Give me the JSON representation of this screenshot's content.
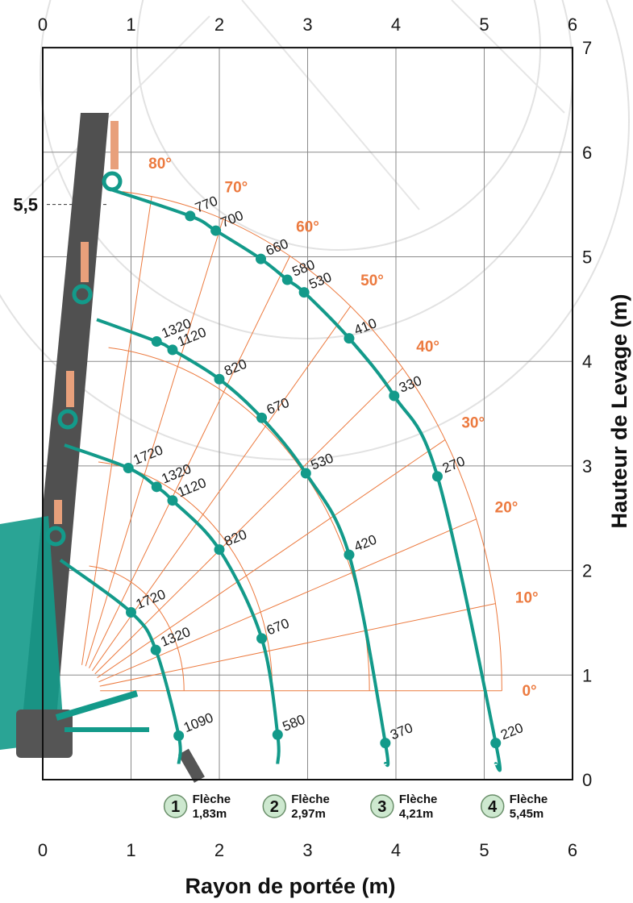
{
  "chart_data": {
    "type": "line",
    "xlabel": "Rayon de portée (m)",
    "ylabel": "Hauteur de Levage (m)",
    "xlim": [
      0,
      6
    ],
    "ylim": [
      0,
      7
    ],
    "x_ticks": [
      "0",
      "1",
      "2",
      "3",
      "4",
      "5",
      "6"
    ],
    "y_ticks": [
      "0",
      "1",
      "2",
      "3",
      "4",
      "5",
      "6",
      "7"
    ],
    "grid": true,
    "reference_line": {
      "y": 5.5,
      "label": "5,5"
    },
    "angle_lines": [
      {
        "label": "0°",
        "deg": 0
      },
      {
        "label": "10°",
        "deg": 10
      },
      {
        "label": "20°",
        "deg": 20
      },
      {
        "label": "30°",
        "deg": 30
      },
      {
        "label": "40°",
        "deg": 40
      },
      {
        "label": "50°",
        "deg": 50
      },
      {
        "label": "60°",
        "deg": 60
      },
      {
        "label": "70°",
        "deg": 70
      },
      {
        "label": "80°",
        "deg": 80
      }
    ],
    "series": [
      {
        "name": "Flèche 1,83m",
        "number": "1",
        "line1": "Flèche",
        "line2": "1,83m",
        "points": [
          {
            "x": 1.0,
            "y": 1.6,
            "load": "1720"
          },
          {
            "x": 1.28,
            "y": 1.24,
            "load": "1320"
          },
          {
            "x": 1.54,
            "y": 0.42,
            "load": "1090"
          }
        ]
      },
      {
        "name": "Flèche 2,97m",
        "number": "2",
        "line1": "Flèche",
        "line2": "2,97m",
        "points": [
          {
            "x": 0.97,
            "y": 2.98,
            "load": "1720"
          },
          {
            "x": 1.29,
            "y": 2.8,
            "load": "1320"
          },
          {
            "x": 1.47,
            "y": 2.67,
            "load": "1120"
          },
          {
            "x": 2.0,
            "y": 2.2,
            "load": "820"
          },
          {
            "x": 2.48,
            "y": 1.35,
            "load": "670"
          },
          {
            "x": 2.66,
            "y": 0.43,
            "load": "580"
          }
        ]
      },
      {
        "name": "Flèche 4,21m",
        "number": "3",
        "line1": "Flèche",
        "line2": "4,21m",
        "points": [
          {
            "x": 1.29,
            "y": 4.19,
            "load": "1320"
          },
          {
            "x": 1.47,
            "y": 4.11,
            "load": "1120"
          },
          {
            "x": 2.0,
            "y": 3.83,
            "load": "820"
          },
          {
            "x": 2.48,
            "y": 3.46,
            "load": "670"
          },
          {
            "x": 2.98,
            "y": 2.93,
            "load": "530"
          },
          {
            "x": 3.47,
            "y": 2.15,
            "load": "420"
          },
          {
            "x": 3.88,
            "y": 0.35,
            "load": "370"
          }
        ]
      },
      {
        "name": "Flèche 5,45m",
        "number": "4",
        "line1": "Flèche",
        "line2": "5,45m",
        "points": [
          {
            "x": 1.67,
            "y": 5.39,
            "load": "770"
          },
          {
            "x": 1.96,
            "y": 5.25,
            "load": "700"
          },
          {
            "x": 2.47,
            "y": 4.98,
            "load": "660"
          },
          {
            "x": 2.77,
            "y": 4.78,
            "load": "580"
          },
          {
            "x": 2.96,
            "y": 4.66,
            "load": "530"
          },
          {
            "x": 3.47,
            "y": 4.22,
            "load": "410"
          },
          {
            "x": 3.98,
            "y": 3.67,
            "load": "330"
          },
          {
            "x": 4.47,
            "y": 2.9,
            "load": "270"
          },
          {
            "x": 5.13,
            "y": 0.35,
            "load": "220"
          }
        ]
      }
    ]
  },
  "colors": {
    "curve": "#139a8a",
    "angle": "#ec7a3f",
    "grid": "#8a8a8a",
    "boom": "#505050",
    "badge_fill": "#cde8cf"
  }
}
